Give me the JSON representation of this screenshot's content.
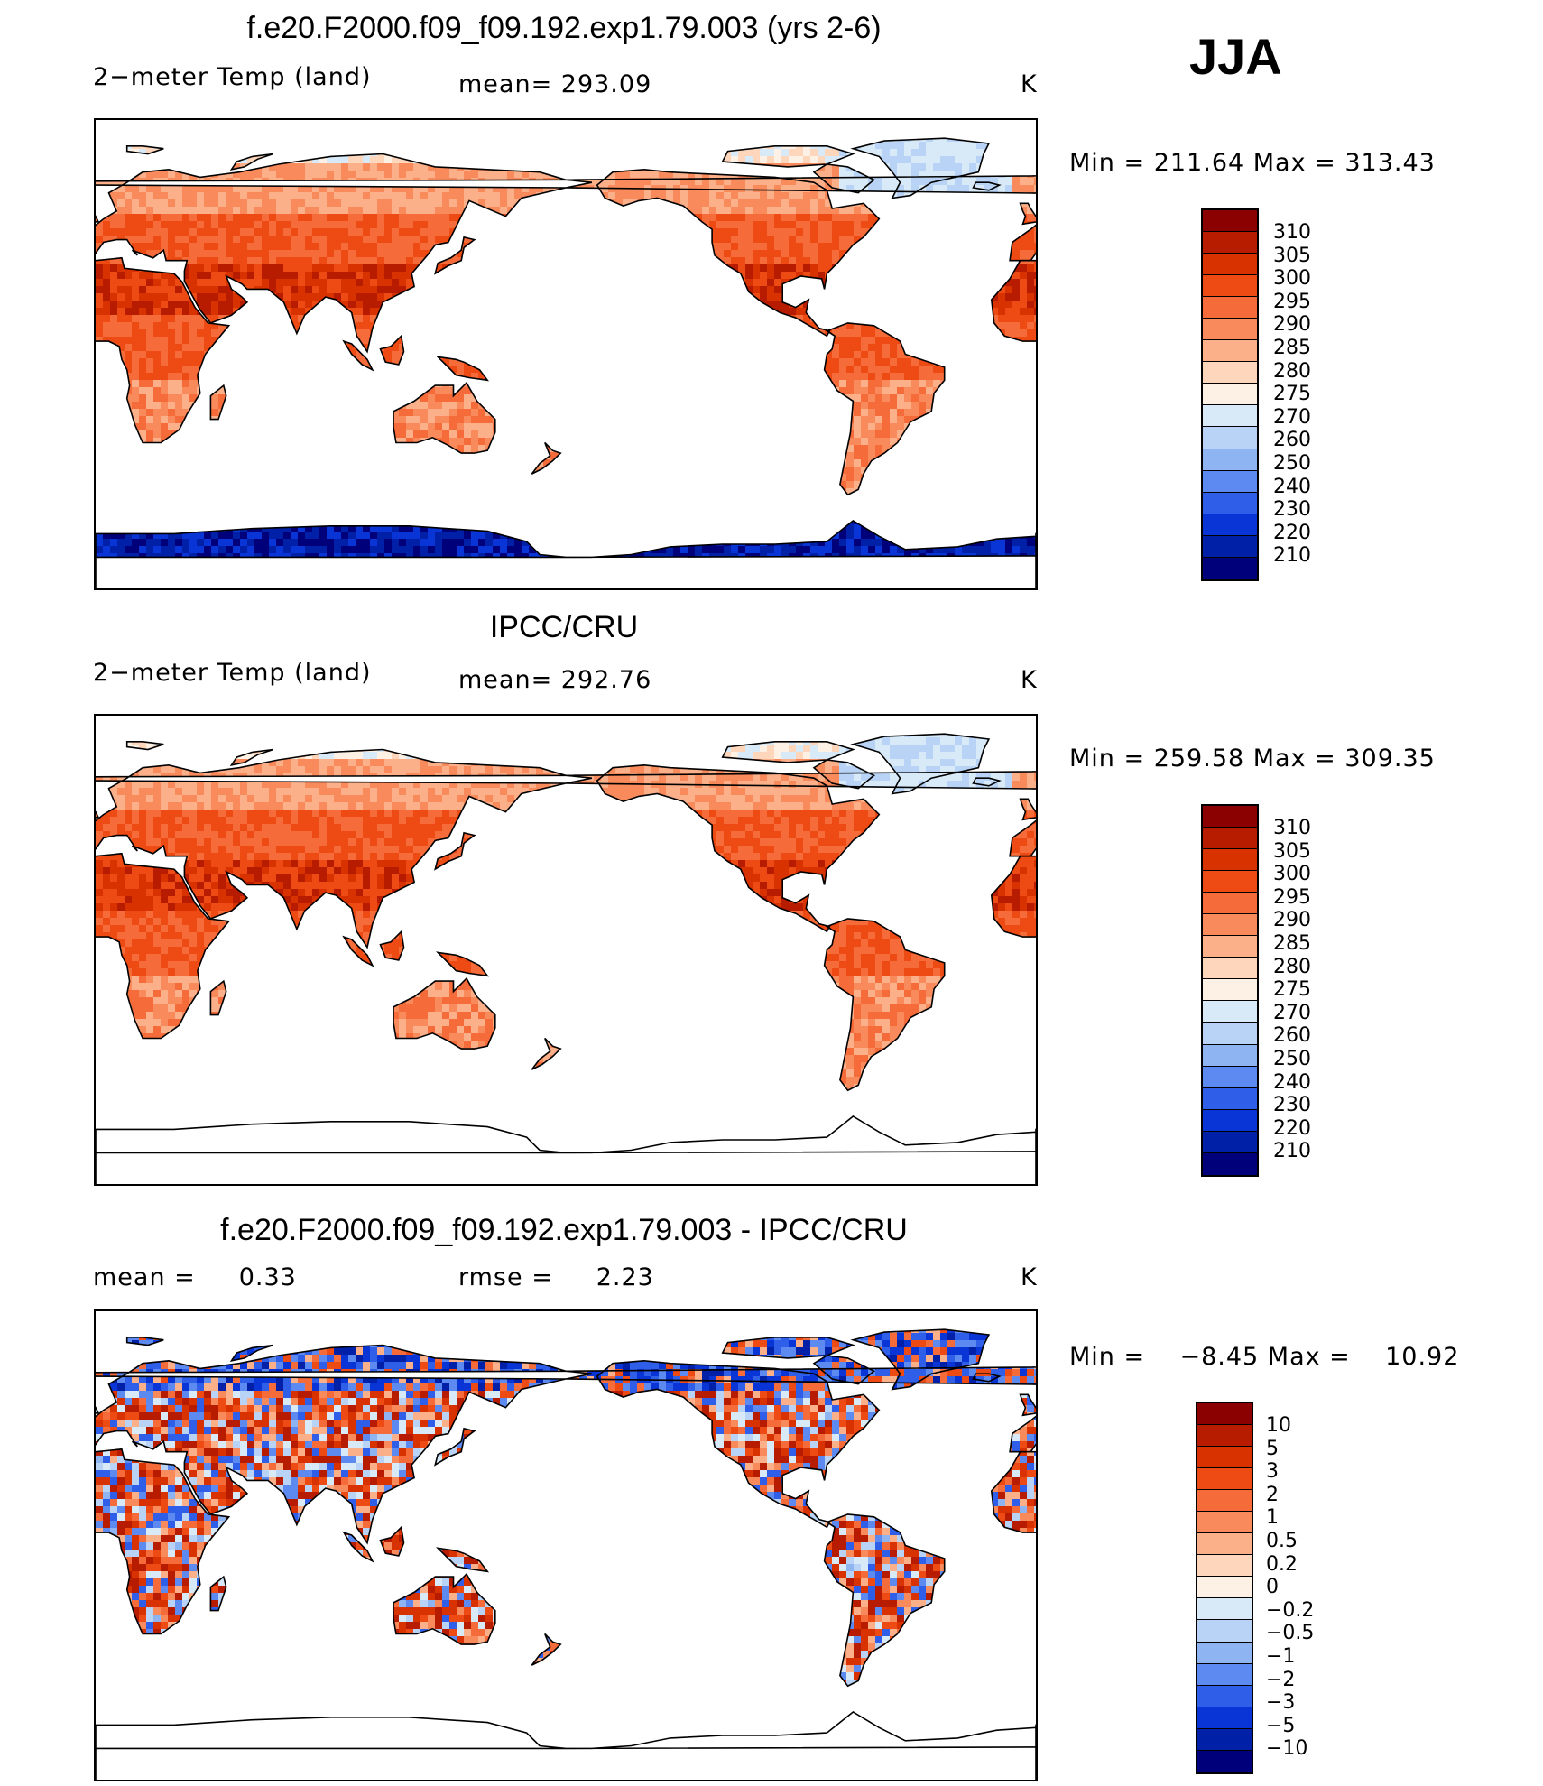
{
  "figure": {
    "season": "JJA"
  },
  "panels": [
    {
      "title": "f.e20.F2000.f09_f09.192.exp1.79.003 (yrs 2-6)",
      "left_label": "2−meter Temp (land)",
      "center_label": "mean= 293.09",
      "units": "K",
      "minmax": "Min = 211.64 Max = 313.43",
      "antarctica": "cold",
      "colorbar": {
        "labels": [
          "310",
          "305",
          "300",
          "295",
          "290",
          "285",
          "280",
          "275",
          "270",
          "260",
          "250",
          "240",
          "230",
          "220",
          "210"
        ],
        "colors": [
          "#8b0000",
          "#b81c00",
          "#d83200",
          "#ee4a14",
          "#f56b3a",
          "#f88a5c",
          "#fbb08a",
          "#fdd6bb",
          "#fdf0e4",
          "#d8eaf8",
          "#b8d3f5",
          "#8fb4f2",
          "#5c8af0",
          "#2f5fe8",
          "#0a35d6",
          "#0020a8",
          "#00007a"
        ]
      },
      "field": "absolute"
    },
    {
      "title": "IPCC/CRU",
      "left_label": "2−meter Temp (land)",
      "center_label": "mean= 292.76",
      "units": "K",
      "minmax": "Min = 259.58 Max = 309.35",
      "antarctica": "none",
      "colorbar": {
        "labels": [
          "310",
          "305",
          "300",
          "295",
          "290",
          "285",
          "280",
          "275",
          "270",
          "260",
          "250",
          "240",
          "230",
          "220",
          "210"
        ],
        "colors": [
          "#8b0000",
          "#b81c00",
          "#d83200",
          "#ee4a14",
          "#f56b3a",
          "#f88a5c",
          "#fbb08a",
          "#fdd6bb",
          "#fdf0e4",
          "#d8eaf8",
          "#b8d3f5",
          "#8fb4f2",
          "#5c8af0",
          "#2f5fe8",
          "#0a35d6",
          "#0020a8",
          "#00007a"
        ]
      },
      "field": "absolute"
    },
    {
      "title": "f.e20.F2000.f09_f09.192.exp1.79.003 - IPCC/CRU",
      "left_label": "mean =     0.33",
      "center_label": "rmse =     2.23",
      "units": "K",
      "minmax": "Min =    −8.45 Max =    10.92",
      "antarctica": "none",
      "colorbar": {
        "labels": [
          "10",
          "5",
          "3",
          "2",
          "1",
          "0.5",
          "0.2",
          "0",
          "−0.2",
          "−0.5",
          "−1",
          "−2",
          "−3",
          "−5",
          "−10"
        ],
        "colors": [
          "#8b0000",
          "#b81c00",
          "#d83200",
          "#ee4a14",
          "#f56b3a",
          "#f88a5c",
          "#fbb08a",
          "#fdd6bb",
          "#fdf0e4",
          "#d8eaf8",
          "#b8d3f5",
          "#8fb4f2",
          "#5c8af0",
          "#2f5fe8",
          "#0a35d6",
          "#0020a8",
          "#00007a"
        ]
      },
      "field": "difference"
    }
  ]
}
